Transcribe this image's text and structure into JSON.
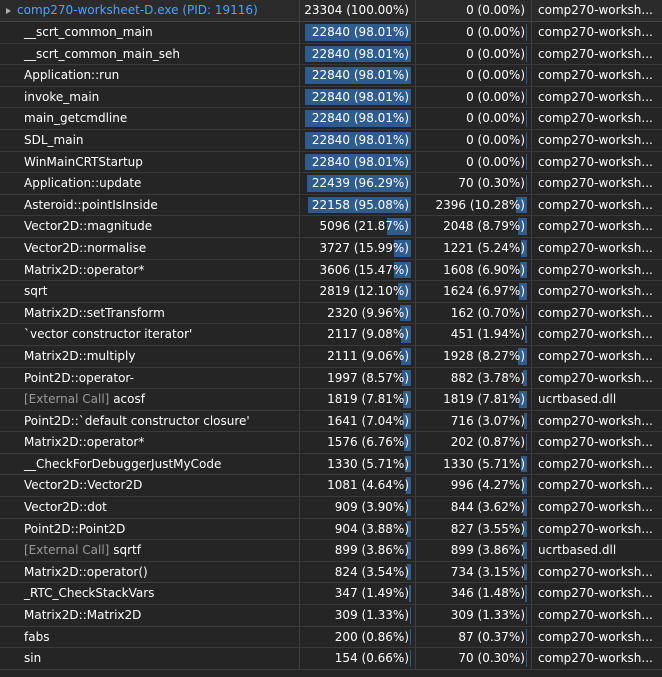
{
  "root": {
    "name": "comp270-worksheet-D.exe (PID: 19116)",
    "total": "23304 (100.00%)",
    "self": "0 (0.00%)",
    "module": "comp270-worksh...",
    "total_frac": 0,
    "self_frac": 0
  },
  "rows": [
    {
      "prefix": "",
      "name": "__scrt_common_main",
      "total": "22840 (98.01%)",
      "self": "0 (0.00%)",
      "module": "comp270-worksh...",
      "total_frac": 0.9801,
      "self_frac": 0
    },
    {
      "prefix": "",
      "name": "__scrt_common_main_seh",
      "total": "22840 (98.01%)",
      "self": "0 (0.00%)",
      "module": "comp270-worksh...",
      "total_frac": 0.9801,
      "self_frac": 0
    },
    {
      "prefix": "",
      "name": "Application::run",
      "total": "22840 (98.01%)",
      "self": "0 (0.00%)",
      "module": "comp270-worksh...",
      "total_frac": 0.9801,
      "self_frac": 0
    },
    {
      "prefix": "",
      "name": "invoke_main",
      "total": "22840 (98.01%)",
      "self": "0 (0.00%)",
      "module": "comp270-worksh...",
      "total_frac": 0.9801,
      "self_frac": 0
    },
    {
      "prefix": "",
      "name": "main_getcmdline",
      "total": "22840 (98.01%)",
      "self": "0 (0.00%)",
      "module": "comp270-worksh...",
      "total_frac": 0.9801,
      "self_frac": 0
    },
    {
      "prefix": "",
      "name": "SDL_main",
      "total": "22840 (98.01%)",
      "self": "0 (0.00%)",
      "module": "comp270-worksh...",
      "total_frac": 0.9801,
      "self_frac": 0
    },
    {
      "prefix": "",
      "name": "WinMainCRTStartup",
      "total": "22840 (98.01%)",
      "self": "0 (0.00%)",
      "module": "comp270-worksh...",
      "total_frac": 0.9801,
      "self_frac": 0
    },
    {
      "prefix": "",
      "name": "Application::update",
      "total": "22439 (96.29%)",
      "self": "70 (0.30%)",
      "module": "comp270-worksh...",
      "total_frac": 0.9629,
      "self_frac": 0.003
    },
    {
      "prefix": "",
      "name": "Asteroid::pointIsInside",
      "total": "22158 (95.08%)",
      "self": "2396 (10.28%)",
      "module": "comp270-worksh...",
      "total_frac": 0.9508,
      "self_frac": 0.1028
    },
    {
      "prefix": "",
      "name": "Vector2D::magnitude",
      "total": "5096 (21.87%)",
      "self": "2048 (8.79%)",
      "module": "comp270-worksh...",
      "total_frac": 0.2187,
      "self_frac": 0.0879
    },
    {
      "prefix": "",
      "name": "Vector2D::normalise",
      "total": "3727 (15.99%)",
      "self": "1221 (5.24%)",
      "module": "comp270-worksh...",
      "total_frac": 0.1599,
      "self_frac": 0.0524
    },
    {
      "prefix": "",
      "name": "Matrix2D::operator*",
      "total": "3606 (15.47%)",
      "self": "1608 (6.90%)",
      "module": "comp270-worksh...",
      "total_frac": 0.1547,
      "self_frac": 0.069
    },
    {
      "prefix": "",
      "name": "sqrt",
      "total": "2819 (12.10%)",
      "self": "1624 (6.97%)",
      "module": "comp270-worksh...",
      "total_frac": 0.121,
      "self_frac": 0.0697
    },
    {
      "prefix": "",
      "name": "Matrix2D::setTransform",
      "total": "2320 (9.96%)",
      "self": "162 (0.70%)",
      "module": "comp270-worksh...",
      "total_frac": 0.0996,
      "self_frac": 0.007
    },
    {
      "prefix": "",
      "name": "`vector constructor iterator'",
      "total": "2117 (9.08%)",
      "self": "451 (1.94%)",
      "module": "comp270-worksh...",
      "total_frac": 0.0908,
      "self_frac": 0.0194
    },
    {
      "prefix": "",
      "name": "Matrix2D::multiply",
      "total": "2111 (9.06%)",
      "self": "1928 (8.27%)",
      "module": "comp270-worksh...",
      "total_frac": 0.0906,
      "self_frac": 0.0827
    },
    {
      "prefix": "",
      "name": "Point2D::operator-",
      "total": "1997 (8.57%)",
      "self": "882 (3.78%)",
      "module": "comp270-worksh...",
      "total_frac": 0.0857,
      "self_frac": 0.0378
    },
    {
      "prefix": "[External Call]",
      "name": "acosf",
      "total": "1819 (7.81%)",
      "self": "1819 (7.81%)",
      "module": "ucrtbased.dll",
      "total_frac": 0.0781,
      "self_frac": 0.0781
    },
    {
      "prefix": "",
      "name": "Point2D::`default constructor closure'",
      "total": "1641 (7.04%)",
      "self": "716 (3.07%)",
      "module": "comp270-worksh...",
      "total_frac": 0.0704,
      "self_frac": 0.0307
    },
    {
      "prefix": "",
      "name": "Matrix2D::operator*",
      "total": "1576 (6.76%)",
      "self": "202 (0.87%)",
      "module": "comp270-worksh...",
      "total_frac": 0.0676,
      "self_frac": 0.0087
    },
    {
      "prefix": "",
      "name": "__CheckForDebuggerJustMyCode",
      "total": "1330 (5.71%)",
      "self": "1330 (5.71%)",
      "module": "comp270-worksh...",
      "total_frac": 0.0571,
      "self_frac": 0.0571
    },
    {
      "prefix": "",
      "name": "Vector2D::Vector2D",
      "total": "1081 (4.64%)",
      "self": "996 (4.27%)",
      "module": "comp270-worksh...",
      "total_frac": 0.0464,
      "self_frac": 0.0427
    },
    {
      "prefix": "",
      "name": "Vector2D::dot",
      "total": "909 (3.90%)",
      "self": "844 (3.62%)",
      "module": "comp270-worksh...",
      "total_frac": 0.039,
      "self_frac": 0.0362
    },
    {
      "prefix": "",
      "name": "Point2D::Point2D",
      "total": "904 (3.88%)",
      "self": "827 (3.55%)",
      "module": "comp270-worksh...",
      "total_frac": 0.0388,
      "self_frac": 0.0355
    },
    {
      "prefix": "[External Call]",
      "name": "sqrtf",
      "total": "899 (3.86%)",
      "self": "899 (3.86%)",
      "module": "ucrtbased.dll",
      "total_frac": 0.0386,
      "self_frac": 0.0386
    },
    {
      "prefix": "",
      "name": "Matrix2D::operator()",
      "total": "824 (3.54%)",
      "self": "734 (3.15%)",
      "module": "comp270-worksh...",
      "total_frac": 0.0354,
      "self_frac": 0.0315
    },
    {
      "prefix": "",
      "name": "_RTC_CheckStackVars",
      "total": "347 (1.49%)",
      "self": "346 (1.48%)",
      "module": "comp270-worksh...",
      "total_frac": 0.0149,
      "self_frac": 0.0148
    },
    {
      "prefix": "",
      "name": "Matrix2D::Matrix2D",
      "total": "309 (1.33%)",
      "self": "309 (1.33%)",
      "module": "comp270-worksh...",
      "total_frac": 0.0133,
      "self_frac": 0.0133
    },
    {
      "prefix": "",
      "name": "fabs",
      "total": "200 (0.86%)",
      "self": "87 (0.37%)",
      "module": "comp270-worksh...",
      "total_frac": 0.0086,
      "self_frac": 0.0037
    },
    {
      "prefix": "",
      "name": "sin",
      "total": "154 (0.66%)",
      "self": "70 (0.30%)",
      "module": "comp270-worksh...",
      "total_frac": 0.0066,
      "self_frac": 0.003
    }
  ],
  "colors": {
    "bar": "#2f5c8f",
    "root_text": "#4fa3ff",
    "external_prefix": "#9a9a9a"
  }
}
